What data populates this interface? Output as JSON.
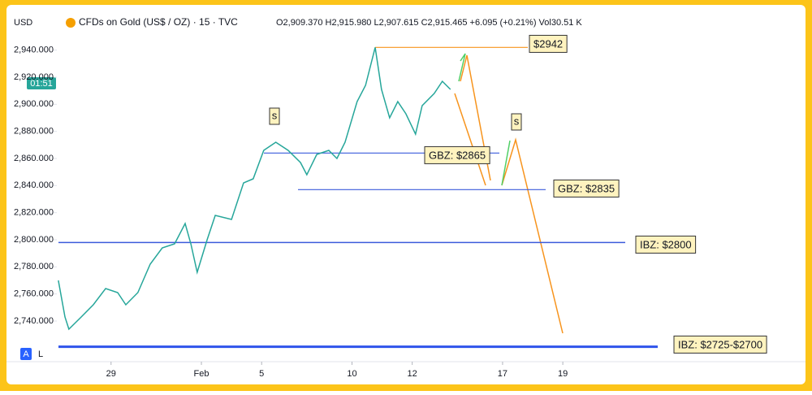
{
  "chart_data": {
    "type": "line",
    "currency": "USD",
    "title": "CFDs on Gold (US$ / OZ) · 15 · TVC",
    "ohlc": "O2,909.370 H2,915.980 L2,907.615 C2,915.465 +6.095 (+0.21%) Vol30.51 K",
    "countdown": "01:51",
    "scale_buttons": [
      "A",
      "L"
    ],
    "color": "#26a69a",
    "x": [
      -1.75,
      -1.53,
      -1.4,
      -0.99,
      -0.59,
      -0.18,
      0.22,
      0.49,
      0.89,
      1.3,
      1.7,
      2.11,
      2.46,
      2.65,
      2.86,
      3.19,
      3.46,
      4.0,
      4.4,
      4.72,
      5.07,
      5.47,
      5.88,
      6.29,
      6.5,
      6.83,
      7.23,
      7.5,
      7.77,
      8.17,
      8.45,
      8.77,
      8.98,
      9.25,
      9.52,
      9.79,
      10.11,
      10.33,
      10.73,
      11.0,
      11.27
    ],
    "values": [
      2770,
      2743,
      2734,
      2743,
      2752,
      2764,
      2761,
      2752,
      2761,
      2782,
      2794,
      2797,
      2812,
      2797,
      2776,
      2800,
      2818,
      2815,
      2842,
      2845,
      2866,
      2872,
      2866,
      2857,
      2848,
      2863,
      2866,
      2860,
      2872,
      2902,
      2914,
      2942,
      2911,
      2890,
      2902,
      2893,
      2878,
      2899,
      2908,
      2917,
      2911
    ],
    "xlim": [
      -1.8,
      22.6
    ],
    "xticks": [
      {
        "value": 0,
        "label": "29"
      },
      {
        "value": 3,
        "label": "Feb"
      },
      {
        "value": 5,
        "label": "5"
      },
      {
        "value": 8,
        "label": "10"
      },
      {
        "value": 10,
        "label": "12"
      },
      {
        "value": 13,
        "label": "17"
      },
      {
        "value": 15,
        "label": "19"
      }
    ],
    "ylim": [
      2713,
      2953
    ],
    "yticks": [
      {
        "value": 2740,
        "label": "2,740.000"
      },
      {
        "value": 2760,
        "label": "2,760.000"
      },
      {
        "value": 2780,
        "label": "2,780.000"
      },
      {
        "value": 2800,
        "label": "2,800.000"
      },
      {
        "value": 2820,
        "label": "2,820.000"
      },
      {
        "value": 2840,
        "label": "2,840.000"
      },
      {
        "value": 2860,
        "label": "2,860.000"
      },
      {
        "value": 2880,
        "label": "2,880.000"
      },
      {
        "value": 2900,
        "label": "2,900.000"
      },
      {
        "value": 2920,
        "label": "2,920.000"
      },
      {
        "value": 2940,
        "label": "2,940.000"
      }
    ],
    "grid": false,
    "levels": [
      {
        "value": 2942,
        "label": "$2942",
        "color": "#f7941d"
      },
      {
        "value": 2864,
        "label": "GBZ: $2865",
        "color": "#3b5bdb"
      },
      {
        "value": 2837,
        "label": "GBZ: $2835",
        "color": "#3b5bdb"
      },
      {
        "value": 2798,
        "label": "IBZ: $2800",
        "color": "#3b5bdb"
      },
      {
        "value": 2721,
        "label": "IBZ: $2725-$2700",
        "color": "#2f54eb"
      }
    ],
    "markers": [
      "s",
      "s"
    ]
  }
}
